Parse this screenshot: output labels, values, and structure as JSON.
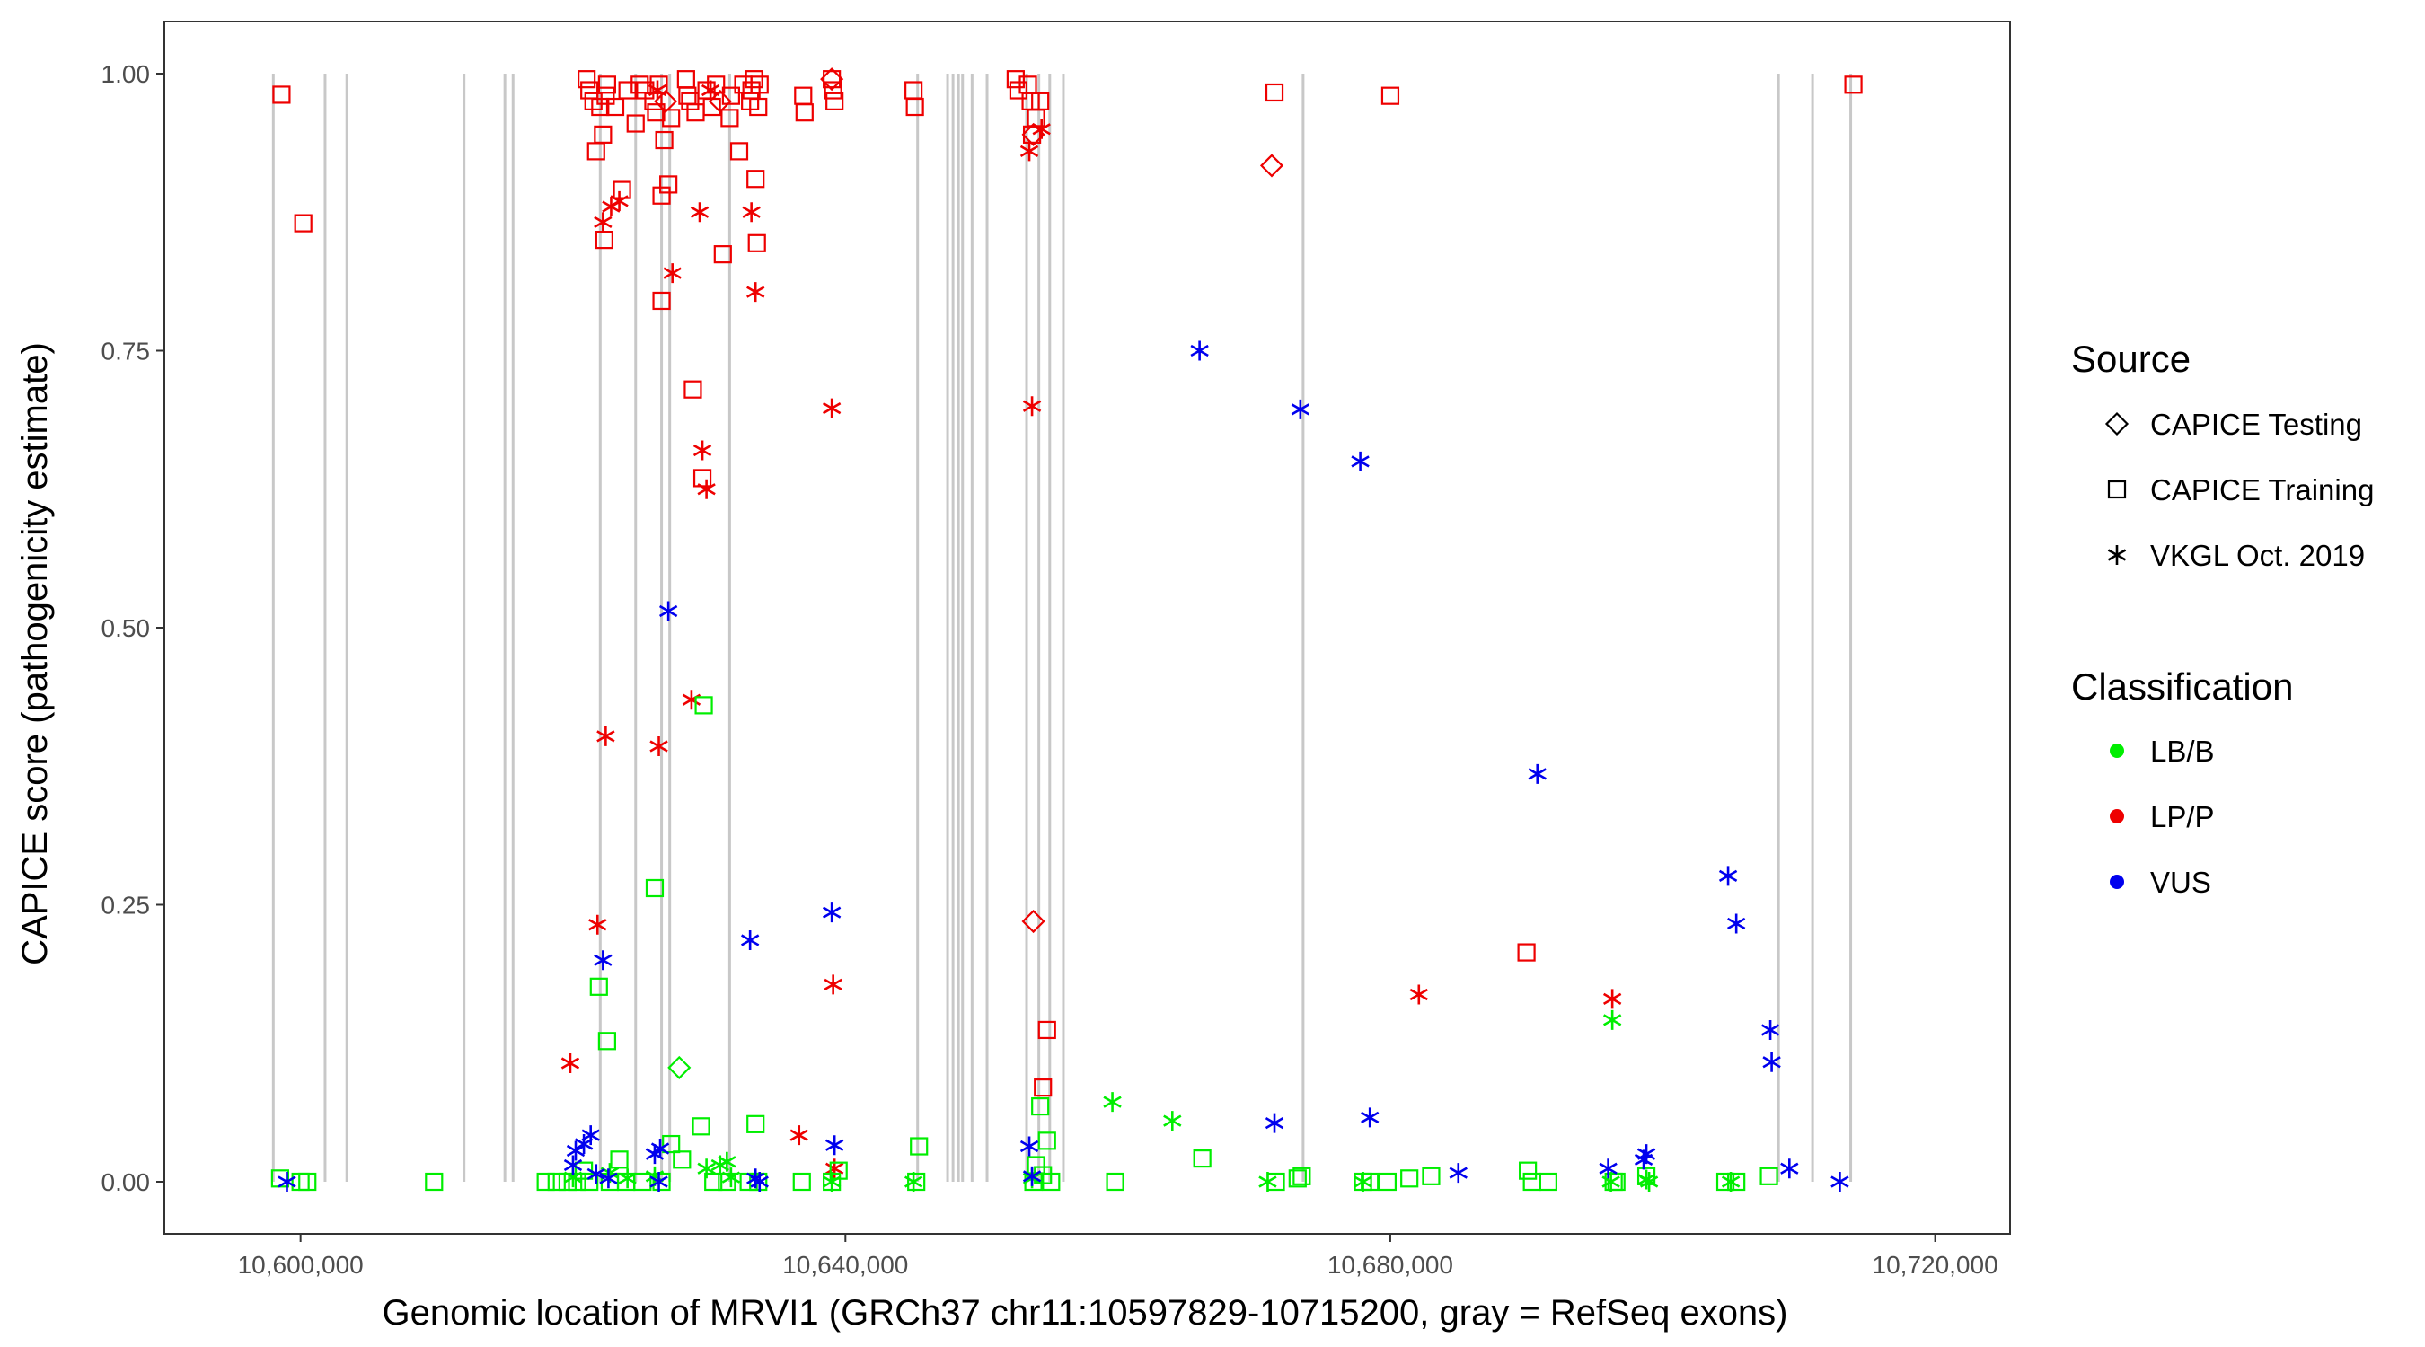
{
  "chart_data": {
    "type": "scatter",
    "title": "",
    "xlabel": "Genomic location of MRVI1 (GRCh37 chr11:10597829-10715200, gray = RefSeq exons)",
    "ylabel": "CAPICE score (pathogenicity estimate)",
    "xlim": [
      10590000,
      10725500
    ],
    "ylim": [
      -0.047,
      1.047
    ],
    "x_ticks": [
      10600000,
      10640000,
      10680000,
      10720000
    ],
    "x_tick_labels": [
      "10,600,000",
      "10,640,000",
      "10,680,000",
      "10,720,000"
    ],
    "y_ticks": [
      0,
      0.25,
      0.5,
      0.75,
      1.0
    ],
    "y_tick_labels": [
      "0.00",
      "0.25",
      "0.50",
      "0.75",
      "1.00"
    ],
    "exons": [
      10598000,
      10601800,
      10603400,
      10612000,
      10615000,
      10615600,
      10622000,
      10624600,
      10626500,
      10627100,
      10631500,
      10645300,
      10647500,
      10647900,
      10648300,
      10648600,
      10649300,
      10650400,
      10653300,
      10654200,
      10655000,
      10656000,
      10673600,
      10708500,
      10711000,
      10713800
    ],
    "legend": {
      "source_title": "Source",
      "sources": [
        {
          "name": "CAPICE Testing",
          "shape": "diamond"
        },
        {
          "name": "CAPICE Training",
          "shape": "square"
        },
        {
          "name": "VKGL Oct. 2019",
          "shape": "asterisk"
        }
      ],
      "classification_title": "Classification",
      "classes": [
        {
          "name": "LB/B",
          "color": "#00ee00"
        },
        {
          "name": "LP/P",
          "color": "#ee0000"
        },
        {
          "name": "VUS",
          "color": "#0000ee"
        }
      ]
    },
    "series": [
      {
        "name": "CAPICE Training / LP/P",
        "shape": "square",
        "color": "#ee0000",
        "x": [
          10598600,
          10600200,
          10621000,
          10621200,
          10621500,
          10621700,
          10622000,
          10622200,
          10622300,
          10622400,
          10622500,
          10623100,
          10623600,
          10624000,
          10624600,
          10624900,
          10625300,
          10625900,
          10626100,
          10626300,
          10626500,
          10626500,
          10626700,
          10627000,
          10627200,
          10628300,
          10628400,
          10628600,
          10628800,
          10629000,
          10629500,
          10629800,
          10630200,
          10630500,
          10631000,
          10631500,
          10631600,
          10632200,
          10632500,
          10633000,
          10633100,
          10633300,
          10633400,
          10633500,
          10633600,
          10633700,
          10636900,
          10637000,
          10639000,
          10639100,
          10639200,
          10645000,
          10645100,
          10652500,
          10652700,
          10653400,
          10653600,
          10653700,
          10654000,
          10654300,
          10654500,
          10654800,
          10671500,
          10680000,
          10690000,
          10714000
        ],
        "y": [
          0.981,
          0.865,
          0.995,
          0.985,
          0.975,
          0.93,
          0.97,
          0.945,
          0.85,
          0.98,
          0.99,
          0.97,
          0.895,
          0.985,
          0.955,
          0.99,
          0.985,
          0.975,
          0.965,
          0.99,
          0.89,
          0.795,
          0.94,
          0.9,
          0.96,
          0.995,
          0.98,
          0.975,
          0.715,
          0.965,
          0.635,
          0.985,
          0.97,
          0.99,
          0.837,
          0.96,
          0.98,
          0.93,
          0.99,
          0.975,
          0.985,
          0.995,
          0.905,
          0.847,
          0.97,
          0.99,
          0.98,
          0.965,
          0.995,
          0.985,
          0.975,
          0.985,
          0.97,
          0.995,
          0.985,
          0.99,
          0.975,
          0.945,
          0.96,
          0.975,
          0.085,
          0.137,
          0.983,
          0.98,
          0.207,
          0.99
        ]
      },
      {
        "name": "CAPICE Testing / LP/P",
        "shape": "diamond",
        "color": "#ee0000",
        "x": [
          10626800,
          10630800,
          10639000,
          10653800,
          10653800,
          10671300
        ],
        "y": [
          0.975,
          0.975,
          0.995,
          0.945,
          0.235,
          0.917
        ]
      },
      {
        "name": "VKGL / LP/P",
        "shape": "asterisk",
        "color": "#ee0000",
        "x": [
          10619800,
          10621800,
          10622200,
          10622400,
          10622800,
          10623400,
          10626200,
          10626300,
          10627300,
          10628700,
          10629300,
          10629500,
          10629800,
          10630100,
          10633100,
          10633400,
          10636600,
          10639000,
          10639100,
          10639200,
          10653500,
          10653700,
          10654400,
          10682100,
          10696300
        ],
        "y": [
          0.107,
          0.232,
          0.866,
          0.402,
          0.88,
          0.885,
          0.985,
          0.393,
          0.82,
          0.435,
          0.875,
          0.66,
          0.625,
          0.985,
          0.875,
          0.803,
          0.042,
          0.698,
          0.178,
          0.012,
          0.93,
          0.7,
          0.95,
          0.169,
          0.165
        ]
      },
      {
        "name": "CAPICE Training / LB/B",
        "shape": "square",
        "color": "#00ee00",
        "x": [
          10598500,
          10600000,
          10600500,
          10609800,
          10618000,
          10618800,
          10619600,
          10620300,
          10620800,
          10621200,
          10621900,
          10622500,
          10622700,
          10623400,
          10623900,
          10625100,
          10626000,
          10626500,
          10627200,
          10628000,
          10629400,
          10629600,
          10630300,
          10631300,
          10632900,
          10633400,
          10633600,
          10636800,
          10639000,
          10639500,
          10645200,
          10645400,
          10653800,
          10654000,
          10654300,
          10654500,
          10654800,
          10655100,
          10659800,
          10666200,
          10671600,
          10673200,
          10673500,
          10678000,
          10678500,
          10679800,
          10681400,
          10683000,
          10690100,
          10690400,
          10691600,
          10696400,
          10696600,
          10698800,
          10704600,
          10705400,
          10707800
        ],
        "y": [
          0.003,
          0.0,
          0.0,
          0.0,
          0.0,
          0.0,
          0.0,
          0.0,
          0.01,
          0.0,
          0.176,
          0.127,
          0.0,
          0.02,
          0.0,
          0.0,
          0.265,
          0.0,
          0.034,
          0.02,
          0.05,
          0.43,
          0.0,
          0.0,
          0.0,
          0.052,
          0.0,
          0.0,
          0.0,
          0.01,
          0.0,
          0.032,
          0.0,
          0.015,
          0.068,
          0.006,
          0.037,
          0.0,
          0.0,
          0.021,
          0.0,
          0.003,
          0.005,
          0.0,
          0.0,
          0.0,
          0.003,
          0.005,
          0.01,
          0.0,
          0.0,
          0.0,
          0.0,
          0.005,
          0.0,
          0.0,
          0.005
        ]
      },
      {
        "name": "CAPICE Testing / LB/B",
        "shape": "diamond",
        "color": "#00ee00",
        "x": [
          10627800
        ],
        "y": [
          0.103
        ]
      },
      {
        "name": "VKGL / LB/B",
        "shape": "asterisk",
        "color": "#00ee00",
        "x": [
          10620000,
          10622700,
          10624000,
          10626000,
          10629800,
          10630800,
          10631300,
          10631600,
          10639000,
          10645000,
          10653700,
          10659600,
          10664000,
          10671000,
          10678000,
          10696200,
          10696300,
          10698800,
          10699000,
          10705000
        ],
        "y": [
          0.004,
          0.008,
          0.003,
          0.005,
          0.012,
          0.015,
          0.018,
          0.004,
          0.0,
          0.0,
          0.003,
          0.072,
          0.055,
          0.0,
          0.0,
          0.0,
          0.146,
          0.002,
          0.0,
          0.0
        ]
      },
      {
        "name": "VKGL / VUS",
        "shape": "asterisk",
        "color": "#0000ee",
        "x": [
          10599000,
          10620000,
          10620200,
          10620800,
          10621300,
          10621700,
          10622200,
          10622600,
          10626000,
          10626300,
          10626400,
          10627000,
          10633000,
          10633400,
          10633700,
          10639000,
          10639200,
          10653500,
          10653700,
          10666000,
          10671500,
          10673400,
          10677800,
          10678500,
          10685000,
          10690800,
          10696000,
          10698600,
          10698800,
          10704800,
          10705400,
          10707900,
          10708000,
          10709300,
          10713000
        ],
        "y": [
          0.0,
          0.015,
          0.028,
          0.034,
          0.042,
          0.007,
          0.2,
          0.003,
          0.025,
          0.0,
          0.03,
          0.515,
          0.218,
          0.003,
          0.0,
          0.243,
          0.033,
          0.032,
          0.005,
          0.75,
          0.053,
          0.697,
          0.65,
          0.058,
          0.008,
          0.368,
          0.012,
          0.02,
          0.025,
          0.276,
          0.233,
          0.137,
          0.108,
          0.012,
          0.0
        ]
      }
    ]
  }
}
